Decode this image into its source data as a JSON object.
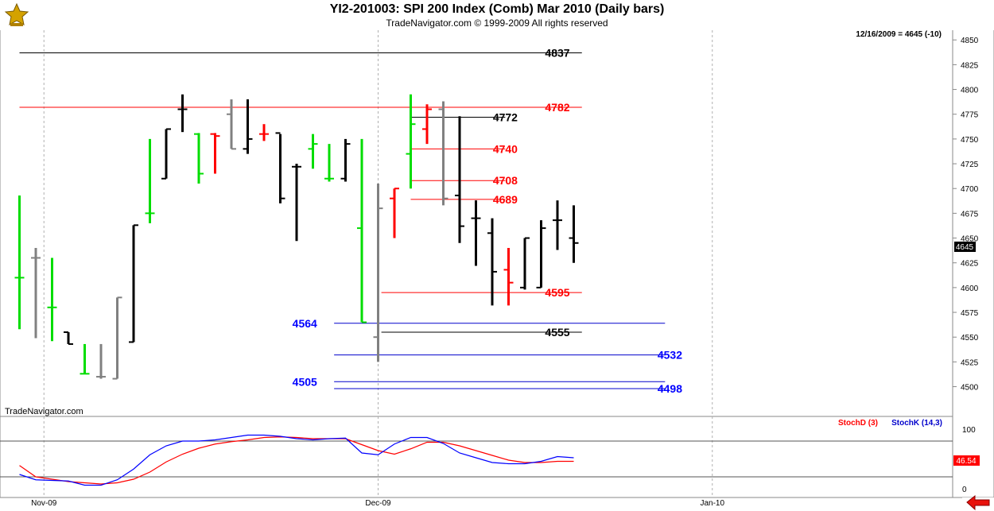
{
  "header": {
    "title": "YI2-201003:  SPI 200 Index (Comb) Mar 2010  (Daily bars)",
    "subtitle": "TradeNavigator.com © 1999-2009 All rights reserved"
  },
  "chart_data": [
    {
      "type": "ohlc",
      "status_text": "12/16/2009 = 4645 (-10)",
      "watermark": "TradeNavigator.com",
      "last_price_label": "4645",
      "ylim": [
        4490,
        4855
      ],
      "y_ticks": [
        4850,
        4825,
        4800,
        4775,
        4750,
        4725,
        4700,
        4675,
        4650,
        4625,
        4600,
        4575,
        4550,
        4525,
        4500
      ],
      "x_ticks": [
        {
          "label": "Nov-09",
          "index": 1.5
        },
        {
          "label": "Dec-09",
          "index": 22
        },
        {
          "label": "Jan-10",
          "index": 42.5
        }
      ],
      "bars": [
        {
          "o": 4610,
          "h": 4693,
          "l": 4558,
          "c": 4610,
          "color": "#00dd00"
        },
        {
          "o": 4630,
          "h": 4640,
          "l": 4549,
          "c": 4630,
          "color": "#808080"
        },
        {
          "o": 4580,
          "h": 4630,
          "l": 4546,
          "c": 4580,
          "color": "#00dd00"
        },
        {
          "o": 4555,
          "h": 4555,
          "l": 4543,
          "c": 4543,
          "color": "#000000"
        },
        {
          "o": 4513,
          "h": 4543,
          "l": 4513,
          "c": 4513,
          "color": "#00dd00"
        },
        {
          "o": 4510,
          "h": 4543,
          "l": 4508,
          "c": 4510,
          "color": "#808080"
        },
        {
          "o": 4508,
          "h": 4590,
          "l": 4508,
          "c": 4590,
          "color": "#808080"
        },
        {
          "o": 4545,
          "h": 4663,
          "l": 4545,
          "c": 4663,
          "color": "#000000"
        },
        {
          "o": 4675,
          "h": 4750,
          "l": 4665,
          "c": 4675,
          "color": "#00dd00"
        },
        {
          "o": 4710,
          "h": 4760,
          "l": 4710,
          "c": 4760,
          "color": "#000000"
        },
        {
          "o": 4780,
          "h": 4795,
          "l": 4757,
          "c": 4780,
          "color": "#000000"
        },
        {
          "o": 4755,
          "h": 4756,
          "l": 4705,
          "c": 4715,
          "color": "#00dd00"
        },
        {
          "o": 4755,
          "h": 4756,
          "l": 4715,
          "c": 4753,
          "color": "#ff0000"
        },
        {
          "o": 4775,
          "h": 4790,
          "l": 4740,
          "c": 4740,
          "color": "#808080"
        },
        {
          "o": 4740,
          "h": 4790,
          "l": 4735,
          "c": 4750,
          "color": "#000000"
        },
        {
          "o": 4755,
          "h": 4765,
          "l": 4748,
          "c": 4755,
          "color": "#ff0000"
        },
        {
          "o": 4756,
          "h": 4755,
          "l": 4685,
          "c": 4690,
          "color": "#000000"
        },
        {
          "o": 4722,
          "h": 4725,
          "l": 4647,
          "c": 4722,
          "color": "#000000"
        },
        {
          "o": 4740,
          "h": 4755,
          "l": 4720,
          "c": 4745,
          "color": "#00dd00"
        },
        {
          "o": 4710,
          "h": 4745,
          "l": 4707,
          "c": 4710,
          "color": "#00dd00"
        },
        {
          "o": 4710,
          "h": 4750,
          "l": 4707,
          "c": 4745,
          "color": "#000000"
        },
        {
          "o": 4660,
          "h": 4750,
          "l": 4565,
          "c": 4565,
          "color": "#00dd00"
        },
        {
          "o": 4550,
          "h": 4705,
          "l": 4525,
          "c": 4680,
          "color": "#808080"
        },
        {
          "o": 4690,
          "h": 4700,
          "l": 4650,
          "c": 4700,
          "color": "#ff0000"
        },
        {
          "o": 4735,
          "h": 4795,
          "l": 4700,
          "c": 4765,
          "color": "#00dd00"
        },
        {
          "o": 4760,
          "h": 4785,
          "l": 4745,
          "c": 4780,
          "color": "#ff0000"
        },
        {
          "o": 4780,
          "h": 4788,
          "l": 4683,
          "c": 4690,
          "color": "#808080"
        },
        {
          "o": 4693,
          "h": 4773,
          "l": 4645,
          "c": 4662,
          "color": "#000000"
        },
        {
          "o": 4670,
          "h": 4688,
          "l": 4622,
          "c": 4670,
          "color": "#000000"
        },
        {
          "o": 4655,
          "h": 4670,
          "l": 4582,
          "c": 4616,
          "color": "#000000"
        },
        {
          "o": 4618,
          "h": 4640,
          "l": 4582,
          "c": 4605,
          "color": "#ff0000"
        },
        {
          "o": 4600,
          "h": 4650,
          "l": 4598,
          "c": 4650,
          "color": "#000000"
        },
        {
          "o": 4600,
          "h": 4668,
          "l": 4600,
          "c": 4660,
          "color": "#000000"
        },
        {
          "o": 4668,
          "h": 4688,
          "l": 4638,
          "c": 4668,
          "color": "#000000"
        },
        {
          "o": 4650,
          "h": 4683,
          "l": 4625,
          "c": 4645,
          "color": "#000000"
        }
      ],
      "levels": [
        {
          "label": "4837",
          "value": 4837,
          "line_color": "#000000",
          "text_color": "#000000",
          "from": 0,
          "to": 34.5,
          "label_at": 33
        },
        {
          "label": "4782",
          "value": 4782,
          "line_color": "#ff0000",
          "text_color": "#ff0000",
          "from": 0,
          "to": 34.5,
          "label_at": 33
        },
        {
          "label": "4772",
          "value": 4772,
          "line_color": "#000000",
          "text_color": "#000000",
          "from": 24,
          "to": 29.8,
          "label_at": 29.8
        },
        {
          "label": "4740",
          "value": 4740,
          "line_color": "#ff0000",
          "text_color": "#ff0000",
          "from": 24,
          "to": 29.8,
          "label_at": 29.8
        },
        {
          "label": "4708",
          "value": 4708,
          "line_color": "#ff0000",
          "text_color": "#ff0000",
          "from": 24,
          "to": 29.8,
          "label_at": 29.8
        },
        {
          "label": "4689",
          "value": 4689,
          "line_color": "#ff0000",
          "text_color": "#ff0000",
          "from": 24,
          "to": 29.8,
          "label_at": 29.8
        },
        {
          "label": "4595",
          "value": 4595,
          "line_color": "#ff0000",
          "text_color": "#ff0000",
          "from": 22.2,
          "to": 34.5,
          "label_at": 33
        },
        {
          "label": "4564",
          "value": 4564,
          "line_color": "#0000cc",
          "text_color": "#0000ff",
          "from": 19.3,
          "to": 39.6,
          "label_at": 17.5
        },
        {
          "label": "4555",
          "value": 4555,
          "line_color": "#000000",
          "text_color": "#000000",
          "from": 22.2,
          "to": 34.5,
          "label_at": 33
        },
        {
          "label": "4532",
          "value": 4532,
          "line_color": "#0000cc",
          "text_color": "#0000ff",
          "from": 19.3,
          "to": 39.6,
          "label_at": 39.9
        },
        {
          "label": "4505",
          "value": 4505,
          "line_color": "#0000cc",
          "text_color": "#0000ff",
          "from": 19.3,
          "to": 39.6,
          "label_at": 17.5
        },
        {
          "label": "4498",
          "value": 4498,
          "line_color": "#0000cc",
          "text_color": "#0000ff",
          "from": 19.3,
          "to": 39.6,
          "label_at": 39.9
        }
      ]
    },
    {
      "type": "line",
      "legend": [
        {
          "name": "StochD (3)",
          "color": "#ff0000"
        },
        {
          "name": "StochK (14,3)",
          "color": "#0000ff"
        }
      ],
      "ylim": [
        0,
        100
      ],
      "y_ticks": [
        100,
        0
      ],
      "reference_lines": [
        80,
        20
      ],
      "last_value_label": "46.54",
      "series": [
        {
          "name": "StochD (3)",
          "color": "#ff0000",
          "values": [
            39,
            20,
            16,
            12,
            10,
            8,
            10,
            16,
            28,
            45,
            58,
            68,
            75,
            79,
            82,
            86,
            87,
            86,
            84,
            84,
            84,
            74,
            64,
            58,
            67,
            78,
            78,
            72,
            64,
            56,
            48,
            44,
            44,
            46,
            46
          ]
        },
        {
          "name": "StochK (14,3)",
          "color": "#0000ff",
          "values": [
            24,
            15,
            14,
            13,
            6,
            6,
            15,
            33,
            57,
            72,
            80,
            80,
            82,
            86,
            90,
            90,
            88,
            84,
            82,
            84,
            85,
            60,
            57,
            75,
            86,
            86,
            76,
            60,
            52,
            44,
            42,
            42,
            46,
            54,
            52
          ]
        }
      ]
    }
  ]
}
